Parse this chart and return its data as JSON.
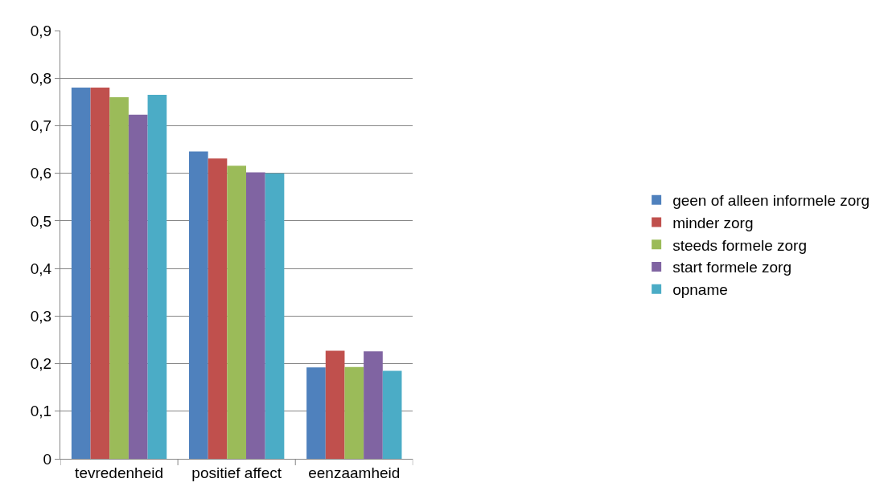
{
  "chart_data": {
    "type": "bar",
    "categories": [
      "tevredenheid",
      "positief affect",
      "eenzaamheid"
    ],
    "series": [
      {
        "name": "geen of alleen informele zorg",
        "color": "#4f81bd",
        "values": [
          0.78,
          0.646,
          0.192
        ]
      },
      {
        "name": "minder zorg",
        "color": "#c0504d",
        "values": [
          0.78,
          0.631,
          0.227
        ]
      },
      {
        "name": "steeds formele zorg",
        "color": "#9bbb59",
        "values": [
          0.76,
          0.616,
          0.193
        ]
      },
      {
        "name": "start formele zorg",
        "color": "#8064a2",
        "values": [
          0.723,
          0.602,
          0.226
        ]
      },
      {
        "name": "opname",
        "color": "#4bacc6",
        "values": [
          0.765,
          0.6,
          0.185
        ]
      }
    ],
    "ylim": [
      0,
      0.9
    ],
    "yticks": [
      {
        "value": 0,
        "label": "0"
      },
      {
        "value": 0.1,
        "label": "0,1"
      },
      {
        "value": 0.2,
        "label": "0,2"
      },
      {
        "value": 0.3,
        "label": "0,3"
      },
      {
        "value": 0.4,
        "label": "0,4"
      },
      {
        "value": 0.5,
        "label": "0,5"
      },
      {
        "value": 0.6,
        "label": "0,6"
      },
      {
        "value": 0.7,
        "label": "0,7"
      },
      {
        "value": 0.8,
        "label": "0,8"
      },
      {
        "value": 0.9,
        "label": "0,9"
      }
    ],
    "grid": "y",
    "legend": "right"
  }
}
